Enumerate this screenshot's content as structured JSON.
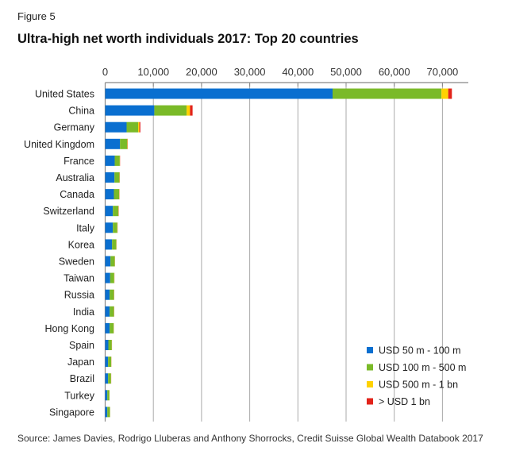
{
  "figure_label": "Figure 5",
  "source": "Source: James Davies, Rodrigo Lluberas and Anthony Shorrocks, Credit Suisse Global Wealth Databook 2017",
  "chart_data": {
    "type": "bar",
    "orientation": "horizontal",
    "stacked": true,
    "title": "Ultra-high net worth individuals 2017: Top 20 countries",
    "xlabel": "",
    "ylabel": "",
    "xlim": [
      0,
      72000
    ],
    "xticks": [
      0,
      10000,
      20000,
      30000,
      40000,
      50000,
      60000,
      70000
    ],
    "xtick_labels": [
      "0",
      "10,000",
      "20,000",
      "30,000",
      "40,000",
      "50,000",
      "60,000",
      "70,000"
    ],
    "xaxis_position": "top",
    "grid": "vertical",
    "legend_position": "bottom-right",
    "categories": [
      "United States",
      "China",
      "Germany",
      "United Kingdom",
      "France",
      "Australia",
      "Canada",
      "Switzerland",
      "Italy",
      "Korea",
      "Sweden",
      "Taiwan",
      "Russia",
      "India",
      "Hong Kong",
      "Spain",
      "Japan",
      "Brazil",
      "Turkey",
      "Singapore"
    ],
    "series": [
      {
        "name": "USD 50 m - 100 m",
        "color": "#0a6fd0",
        "values": [
          47200,
          10200,
          4450,
          3080,
          1980,
          1930,
          1810,
          1590,
          1590,
          1430,
          1100,
          1040,
          930,
          930,
          930,
          660,
          600,
          600,
          440,
          440
        ]
      },
      {
        "name": "USD 100 m - 500 m",
        "color": "#7aba28",
        "values": [
          22600,
          6700,
          2400,
          1500,
          1050,
          1030,
          1100,
          1150,
          930,
          870,
          880,
          830,
          880,
          880,
          830,
          710,
          660,
          610,
          440,
          550
        ]
      },
      {
        "name": "USD 500 m - 1 bn",
        "color": "#ffd200",
        "values": [
          1400,
          700,
          250,
          60,
          40,
          40,
          40,
          40,
          30,
          30,
          30,
          30,
          30,
          30,
          30,
          20,
          20,
          20,
          10,
          10
        ]
      },
      {
        "name": "> USD 1 bn",
        "color": "#e2231a",
        "values": [
          760,
          540,
          200,
          50,
          30,
          30,
          30,
          40,
          30,
          20,
          20,
          20,
          30,
          30,
          20,
          20,
          20,
          20,
          10,
          10
        ]
      }
    ]
  }
}
